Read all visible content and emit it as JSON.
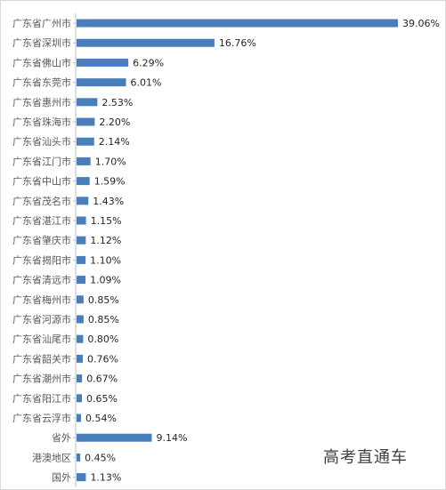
{
  "chart_data": {
    "type": "bar",
    "orientation": "horizontal",
    "categories": [
      "广东省广州市",
      "广东省深圳市",
      "广东省佛山市",
      "广东省东莞市",
      "广东省惠州市",
      "广东省珠海市",
      "广东省汕头市",
      "广东省江门市",
      "广东省中山市",
      "广东省茂名市",
      "广东省湛江市",
      "广东省肇庆市",
      "广东省揭阳市",
      "广东省清远市",
      "广东省梅州市",
      "广东省河源市",
      "广东省汕尾市",
      "广东省韶关市",
      "广东省潮州市",
      "广东省阳江市",
      "广东省云浮市",
      "省外",
      "港澳地区",
      "国外"
    ],
    "values": [
      39.06,
      16.76,
      6.29,
      6.01,
      2.53,
      2.2,
      2.14,
      1.7,
      1.59,
      1.43,
      1.15,
      1.12,
      1.1,
      1.09,
      0.85,
      0.85,
      0.8,
      0.76,
      0.67,
      0.65,
      0.54,
      9.14,
      0.45,
      1.13
    ],
    "data_labels": [
      "39.06%",
      "16.76%",
      "6.29%",
      "6.01%",
      "2.53%",
      "2.20%",
      "2.14%",
      "1.70%",
      "1.59%",
      "1.43%",
      "1.15%",
      "1.12%",
      "1.10%",
      "1.09%",
      "0.85%",
      "0.85%",
      "0.80%",
      "0.76%",
      "0.67%",
      "0.65%",
      "0.54%",
      "9.14%",
      "0.45%",
      "1.13%"
    ],
    "unit": "%",
    "xlim": [
      0,
      39.06
    ],
    "grid": false,
    "legend": "none",
    "bar_color": "#4a7ebb",
    "axis_color": "#bfbfbf"
  },
  "watermark": "高考直通车"
}
